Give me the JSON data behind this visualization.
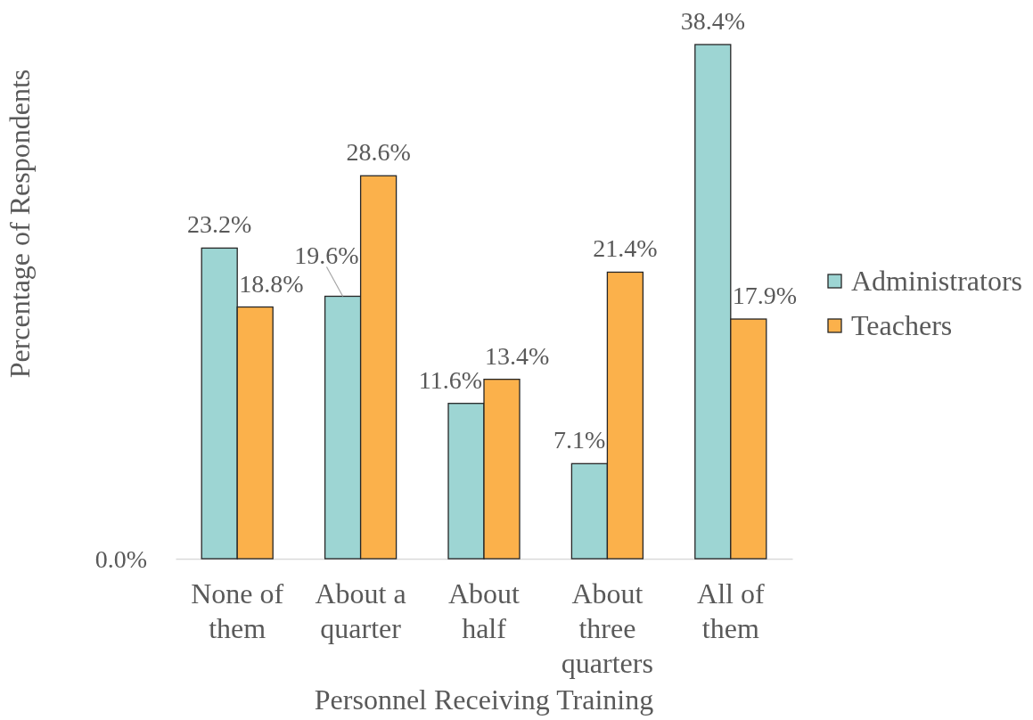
{
  "chart_data": {
    "type": "bar",
    "xlabel": "Personnel Receiving Training",
    "ylabel": "Percentage of Respondents",
    "categories": [
      "None of them",
      "About a quarter",
      "About half",
      "About three quarters",
      "All of them"
    ],
    "series": [
      {
        "name": "Administrators",
        "color": "#9dd5d3",
        "values": [
          23.2,
          19.6,
          11.6,
          7.1,
          38.4
        ],
        "value_labels": [
          "23.2%",
          "19.6%",
          "11.6%",
          "7.1%",
          "38.4%"
        ]
      },
      {
        "name": "Teachers",
        "color": "#fbb14b",
        "values": [
          18.8,
          28.6,
          13.4,
          21.4,
          17.9
        ],
        "value_labels": [
          "18.8%",
          "28.6%",
          "13.4%",
          "21.4%",
          "17.9%"
        ]
      }
    ],
    "annotations": [
      "0.0%"
    ],
    "legend": "right"
  }
}
